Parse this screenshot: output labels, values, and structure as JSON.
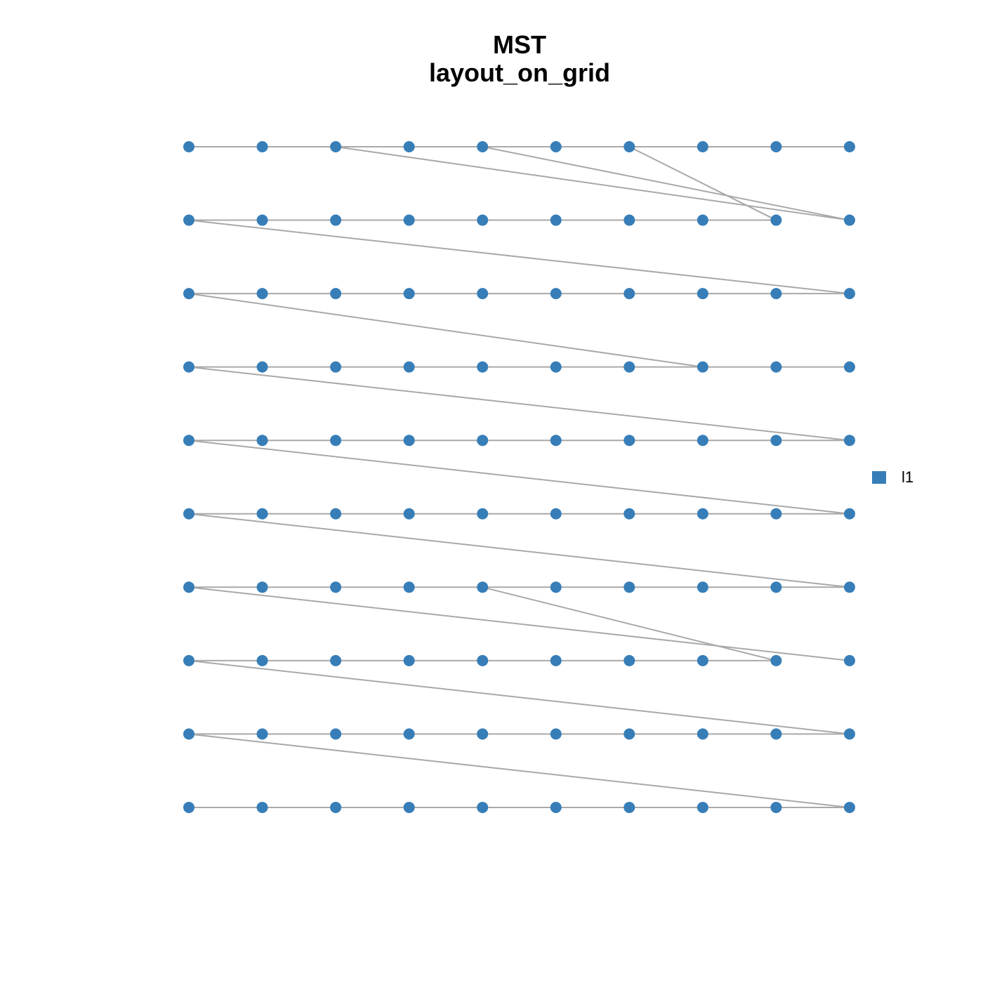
{
  "title": [
    "MST",
    "layout_on_grid"
  ],
  "legend": {
    "label": "l1",
    "color": "#377eb8"
  },
  "node_color": "#377eb8",
  "edge_color": "#a9a9a9",
  "edges": [
    [
      0,
      1
    ],
    [
      1,
      2
    ],
    [
      2,
      3
    ],
    [
      3,
      4
    ],
    [
      4,
      5
    ],
    [
      5,
      6
    ],
    [
      6,
      7
    ],
    [
      7,
      8
    ],
    [
      8,
      9
    ],
    [
      2,
      19
    ],
    [
      4,
      19
    ],
    [
      6,
      18
    ],
    [
      10,
      11
    ],
    [
      11,
      12
    ],
    [
      12,
      13
    ],
    [
      13,
      14
    ],
    [
      14,
      15
    ],
    [
      15,
      16
    ],
    [
      16,
      17
    ],
    [
      17,
      18
    ],
    [
      10,
      29
    ],
    [
      20,
      21
    ],
    [
      21,
      22
    ],
    [
      22,
      23
    ],
    [
      23,
      24
    ],
    [
      24,
      25
    ],
    [
      25,
      26
    ],
    [
      26,
      27
    ],
    [
      27,
      28
    ],
    [
      28,
      29
    ],
    [
      20,
      37
    ],
    [
      30,
      31
    ],
    [
      31,
      32
    ],
    [
      32,
      33
    ],
    [
      33,
      34
    ],
    [
      34,
      35
    ],
    [
      35,
      36
    ],
    [
      36,
      37
    ],
    [
      37,
      38
    ],
    [
      38,
      39
    ],
    [
      30,
      49
    ],
    [
      40,
      41
    ],
    [
      41,
      42
    ],
    [
      42,
      43
    ],
    [
      43,
      44
    ],
    [
      44,
      45
    ],
    [
      45,
      46
    ],
    [
      46,
      47
    ],
    [
      47,
      48
    ],
    [
      48,
      49
    ],
    [
      40,
      59
    ],
    [
      50,
      51
    ],
    [
      51,
      52
    ],
    [
      52,
      53
    ],
    [
      53,
      54
    ],
    [
      54,
      55
    ],
    [
      55,
      56
    ],
    [
      56,
      57
    ],
    [
      57,
      58
    ],
    [
      58,
      59
    ],
    [
      50,
      69
    ],
    [
      60,
      61
    ],
    [
      61,
      62
    ],
    [
      62,
      63
    ],
    [
      63,
      64
    ],
    [
      64,
      65
    ],
    [
      65,
      66
    ],
    [
      66,
      67
    ],
    [
      67,
      68
    ],
    [
      68,
      69
    ],
    [
      60,
      79
    ],
    [
      64,
      78
    ],
    [
      70,
      71
    ],
    [
      71,
      72
    ],
    [
      72,
      73
    ],
    [
      73,
      74
    ],
    [
      74,
      75
    ],
    [
      75,
      76
    ],
    [
      76,
      77
    ],
    [
      77,
      78
    ],
    [
      70,
      89
    ],
    [
      80,
      81
    ],
    [
      81,
      82
    ],
    [
      82,
      83
    ],
    [
      83,
      84
    ],
    [
      84,
      85
    ],
    [
      85,
      86
    ],
    [
      86,
      87
    ],
    [
      87,
      88
    ],
    [
      88,
      89
    ],
    [
      80,
      99
    ],
    [
      90,
      91
    ],
    [
      91,
      92
    ],
    [
      92,
      93
    ],
    [
      93,
      94
    ],
    [
      94,
      95
    ],
    [
      95,
      96
    ],
    [
      96,
      97
    ],
    [
      97,
      98
    ],
    [
      98,
      99
    ]
  ]
}
